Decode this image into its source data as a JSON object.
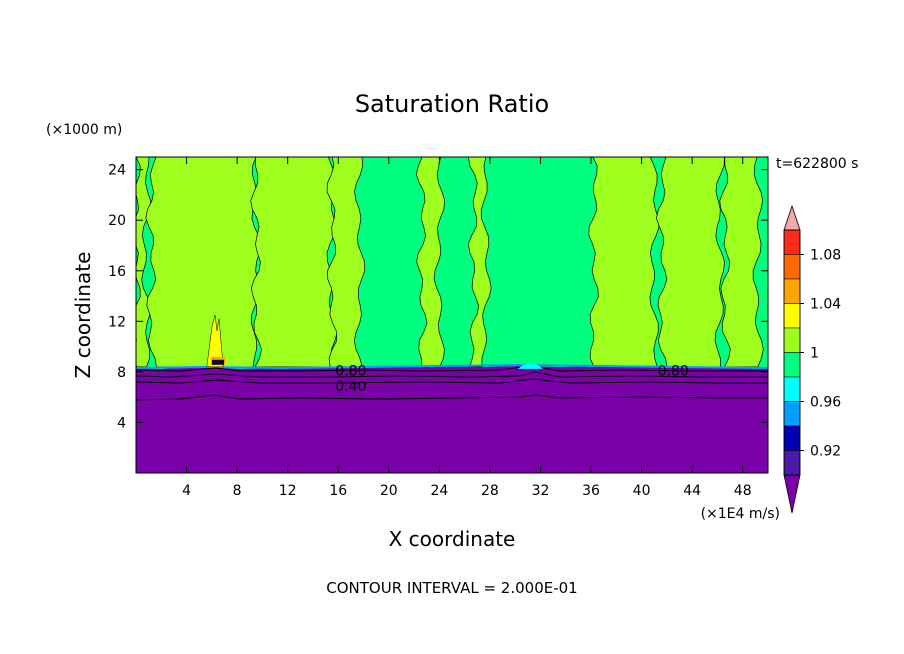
{
  "chart_data": {
    "type": "contour",
    "title": "Saturation Ratio",
    "xlabel": "X coordinate",
    "ylabel": "Z coordinate",
    "x_unit": "(×1E4 m/s)",
    "y_unit": "(×1000 m)",
    "time_label": "t=622800 s",
    "footer": "CONTOUR INTERVAL = 2.000E-01",
    "xlim": [
      0,
      50
    ],
    "ylim": [
      0,
      25
    ],
    "x_ticks": [
      4,
      8,
      12,
      16,
      20,
      24,
      28,
      32,
      36,
      40,
      44,
      48
    ],
    "y_ticks": [
      4,
      8,
      12,
      16,
      20,
      24
    ],
    "contour_labels": [
      {
        "text": "0.80",
        "x": 17.0,
        "z": 8.1
      },
      {
        "text": "0.40",
        "x": 17.0,
        "z": 6.9
      },
      {
        "text": "0.80",
        "x": 42.5,
        "z": 8.1
      }
    ],
    "colorbar": {
      "labels": [
        "1.08",
        "1.04",
        "1",
        "0.96",
        "0.92"
      ],
      "levels": [
        {
          "min": 1.1,
          "color": "#f4a9a9"
        },
        {
          "min": 1.08,
          "max": 1.1,
          "color": "#ff2a1a"
        },
        {
          "min": 1.06,
          "max": 1.08,
          "color": "#ff6a00"
        },
        {
          "min": 1.04,
          "max": 1.06,
          "color": "#ffa500"
        },
        {
          "min": 1.02,
          "max": 1.04,
          "color": "#ffff00"
        },
        {
          "min": 1.0,
          "max": 1.02,
          "color": "#9eff1e"
        },
        {
          "min": 0.98,
          "max": 1.0,
          "color": "#00ff7f"
        },
        {
          "min": 0.96,
          "max": 0.98,
          "color": "#00ffff"
        },
        {
          "min": 0.94,
          "max": 0.96,
          "color": "#00a0ff"
        },
        {
          "min": 0.92,
          "max": 0.94,
          "color": "#0000b0"
        },
        {
          "min": 0.9,
          "max": 0.92,
          "color": "#4b1aa8"
        },
        {
          "max": 0.9,
          "color": "#7a00a8"
        }
      ]
    },
    "regions": {
      "surface_z": 8.4,
      "lower_band_color": "#7a00a8",
      "green_columns_x": [
        [
          0.0,
          0.8
        ],
        [
          1.2,
          9.5
        ],
        [
          9.5,
          15.5
        ],
        [
          15.5,
          17.7
        ],
        [
          22.6,
          24.0
        ],
        [
          26.7,
          27.7
        ],
        [
          36.2,
          41.0
        ],
        [
          41.6,
          46.2
        ],
        [
          46.6,
          49.2
        ]
      ],
      "cyan_patch_x": [
        30.2,
        32.2
      ],
      "yellow_spike_x": [
        5.6,
        6.9
      ]
    }
  }
}
